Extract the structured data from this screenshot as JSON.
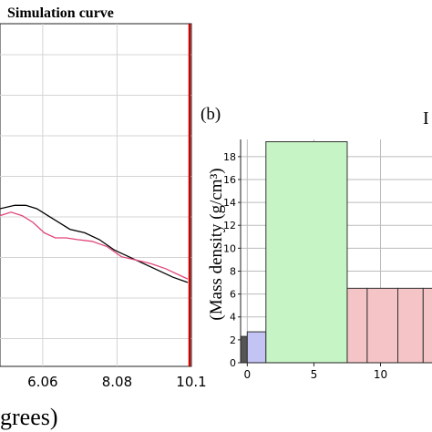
{
  "chart_data": [
    {
      "type": "line",
      "legend": {
        "entries": [
          "Simulation curve"
        ],
        "placement": "top"
      },
      "xlabel": "grees)",
      "ylabel": "",
      "xlim": [
        4.9,
        10.1
      ],
      "x_ticks": [
        "6.06",
        "8.08",
        "10.1"
      ],
      "x_tick_values": [
        6.06,
        8.08,
        10.1
      ],
      "grid": true,
      "marker_line": {
        "x": 10.1,
        "color": "#cc0000"
      },
      "ylim": [
        0,
        1
      ],
      "series": [
        {
          "color": "#000000",
          "x": [
            4.9,
            5.3,
            5.6,
            5.9,
            6.2,
            6.5,
            6.8,
            7.2,
            7.6,
            8.0,
            8.4,
            8.8,
            9.2,
            9.6,
            10.0
          ],
          "y": [
            0.46,
            0.47,
            0.47,
            0.46,
            0.44,
            0.42,
            0.4,
            0.39,
            0.37,
            0.34,
            0.32,
            0.3,
            0.28,
            0.26,
            0.245
          ]
        },
        {
          "color": "#e0457b",
          "x": [
            4.9,
            5.2,
            5.5,
            5.8,
            6.1,
            6.4,
            6.7,
            7.0,
            7.4,
            7.8,
            8.2,
            8.6,
            9.0,
            9.4,
            9.8,
            10.0
          ],
          "y": [
            0.44,
            0.45,
            0.44,
            0.42,
            0.39,
            0.375,
            0.375,
            0.37,
            0.365,
            0.35,
            0.32,
            0.31,
            0.3,
            0.285,
            0.265,
            0.255
          ]
        }
      ]
    },
    {
      "type": "bar",
      "panel_label": "(b)",
      "corner_text": "I",
      "ylabel": "(Mass density (g/cm³)",
      "xlabel": "",
      "xlim": [
        -0.5,
        14
      ],
      "ylim": [
        0,
        19.5
      ],
      "y_ticks": [
        "0",
        "2",
        "4",
        "6",
        "8",
        "10",
        "12",
        "14",
        "16",
        "18"
      ],
      "y_tick_values": [
        0,
        2,
        4,
        6,
        8,
        10,
        12,
        14,
        16,
        18
      ],
      "x_ticks": [
        "0",
        "5",
        "10"
      ],
      "x_tick_values": [
        0,
        5,
        10
      ],
      "grid": true,
      "bars": [
        {
          "x0": -0.5,
          "x1": 0.0,
          "value": 2.3,
          "color": "#555555"
        },
        {
          "x0": 0.0,
          "x1": 1.4,
          "value": 2.7,
          "color": "#c4c4f4"
        },
        {
          "x0": 1.4,
          "x1": 7.5,
          "value": 19.3,
          "color": "#c6f4c4"
        },
        {
          "x0": 7.5,
          "x1": 9.0,
          "value": 6.5,
          "color": "#f5c4c6"
        },
        {
          "x0": 9.0,
          "x1": 11.3,
          "value": 6.5,
          "color": "#f5c4c6"
        },
        {
          "x0": 11.3,
          "x1": 13.2,
          "value": 6.5,
          "color": "#f5c4c6"
        },
        {
          "x0": 13.2,
          "x1": 14.0,
          "value": 6.5,
          "color": "#f5c4c6"
        }
      ]
    }
  ]
}
